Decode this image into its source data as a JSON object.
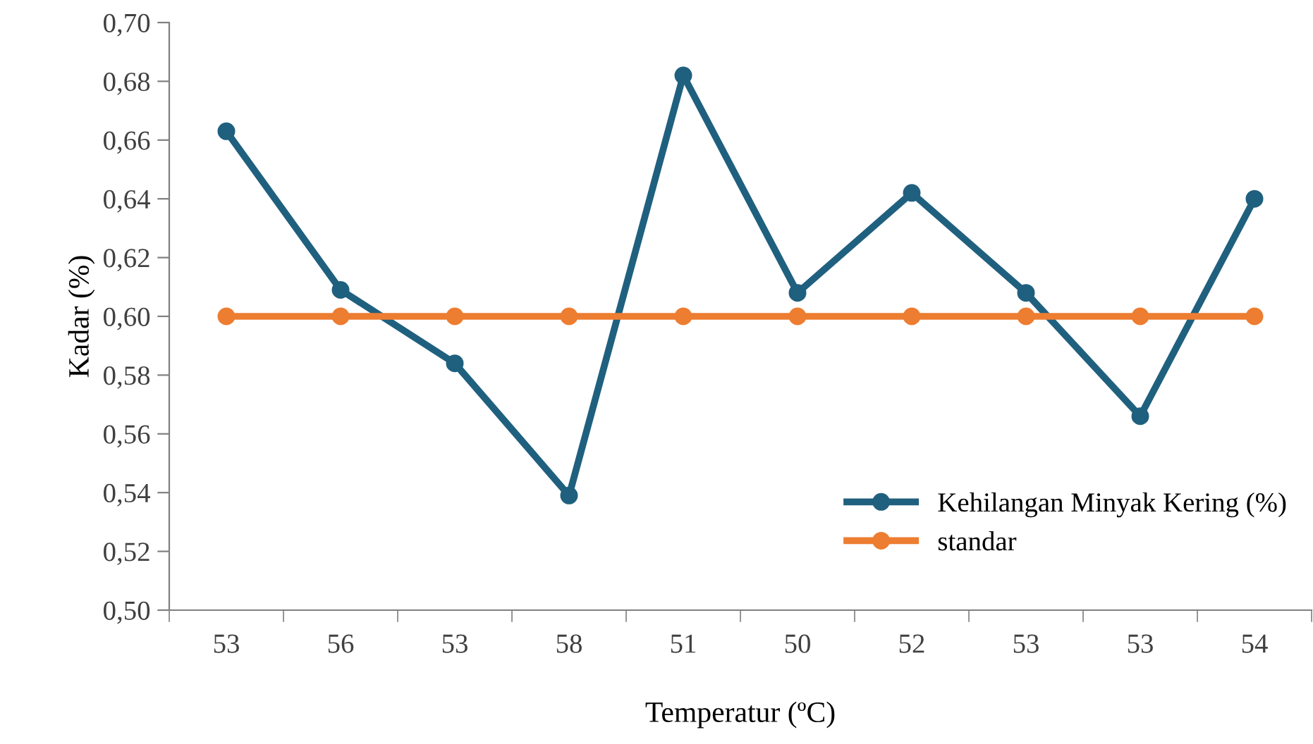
{
  "chart_data": {
    "type": "line",
    "xlabel": "Temperatur (ºC)",
    "ylabel": "Kadar (%)",
    "categories": [
      "53",
      "56",
      "53",
      "58",
      "51",
      "50",
      "52",
      "53",
      "53",
      "54"
    ],
    "series": [
      {
        "name": "Kehilangan Minyak Kering (%)",
        "color": "#20607f",
        "values": [
          0.663,
          0.609,
          0.584,
          0.539,
          0.682,
          0.608,
          0.642,
          0.608,
          0.566,
          0.64
        ]
      },
      {
        "name": "standar",
        "color": "#ed7d31",
        "values": [
          0.6,
          0.6,
          0.6,
          0.6,
          0.6,
          0.6,
          0.6,
          0.6,
          0.6,
          0.6
        ]
      }
    ],
    "ylim": [
      0.5,
      0.7
    ],
    "yticks": [
      {
        "value": 0.5,
        "label": "0,50"
      },
      {
        "value": 0.52,
        "label": "0,52"
      },
      {
        "value": 0.54,
        "label": "0,54"
      },
      {
        "value": 0.56,
        "label": "0,56"
      },
      {
        "value": 0.58,
        "label": "0,58"
      },
      {
        "value": 0.6,
        "label": "0,60"
      },
      {
        "value": 0.62,
        "label": "0,62"
      },
      {
        "value": 0.64,
        "label": "0,64"
      },
      {
        "value": 0.66,
        "label": "0,66"
      },
      {
        "value": 0.68,
        "label": "0,68"
      },
      {
        "value": 0.7,
        "label": "0,70"
      }
    ],
    "grid": false,
    "legend": "bottom right",
    "marker": "circle",
    "line_style": "solid"
  }
}
